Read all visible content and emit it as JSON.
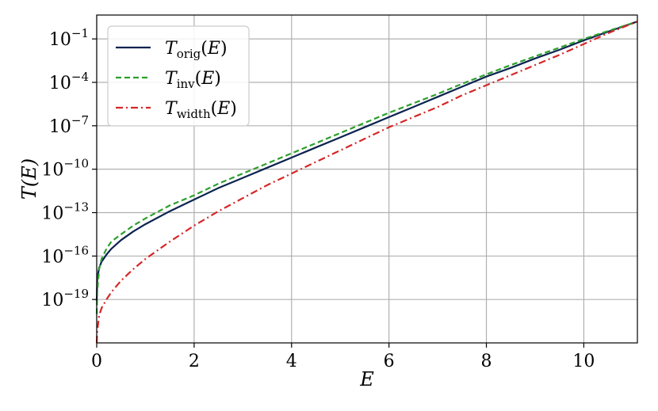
{
  "chart_data": {
    "type": "line",
    "xlabel": "E",
    "ylabel": "T(E)",
    "xlim": [
      0,
      11.1
    ],
    "ylim_log10": [
      -22.0,
      0.65
    ],
    "yscale": "log",
    "grid": true,
    "legend_position": "top-left",
    "x_ticks": [
      0,
      2,
      4,
      6,
      8,
      10
    ],
    "x_tick_labels": [
      "0",
      "2",
      "4",
      "6",
      "8",
      "10"
    ],
    "y_ticks_log10": [
      -1,
      -4,
      -7,
      -10,
      -13,
      -16,
      -19
    ],
    "y_tick_labels": [
      {
        "base": "10",
        "exp": "−1"
      },
      {
        "base": "10",
        "exp": "−4"
      },
      {
        "base": "10",
        "exp": "−7"
      },
      {
        "base": "10",
        "exp": "−10"
      },
      {
        "base": "10",
        "exp": "−13"
      },
      {
        "base": "10",
        "exp": "−16"
      },
      {
        "base": "10",
        "exp": "−19"
      }
    ],
    "series": [
      {
        "name": "T_orig(E)",
        "label_main": "T",
        "label_sub": "orig",
        "label_tail": "(E)",
        "color": "#0b2350",
        "dash": "solid",
        "x": [
          0.01,
          0.05,
          0.1,
          0.2,
          0.3,
          0.5,
          0.75,
          1.0,
          1.5,
          2.0,
          2.5,
          3.0,
          3.5,
          4.0,
          4.5,
          5.0,
          5.5,
          6.0,
          6.5,
          7.0,
          7.5,
          8.0,
          8.5,
          9.0,
          9.5,
          10.0,
          10.5,
          11.1
        ],
        "log10_y": [
          -17.6,
          -16.8,
          -16.4,
          -15.9,
          -15.5,
          -14.9,
          -14.3,
          -13.8,
          -12.9,
          -12.1,
          -11.3,
          -10.6,
          -9.9,
          -9.2,
          -8.5,
          -7.8,
          -7.1,
          -6.4,
          -5.7,
          -5.0,
          -4.3,
          -3.6,
          -3.0,
          -2.35,
          -1.75,
          -1.1,
          -0.5,
          0.2
        ]
      },
      {
        "name": "T_inv(E)",
        "label_main": "T",
        "label_sub": "inv",
        "label_tail": "(E)",
        "color": "#2ca02c",
        "dash": "dashed",
        "x": [
          0.01,
          0.05,
          0.1,
          0.2,
          0.3,
          0.5,
          0.75,
          1.0,
          1.5,
          2.0,
          2.5,
          3.0,
          3.5,
          4.0,
          4.5,
          5.0,
          5.5,
          6.0,
          6.5,
          7.0,
          7.5,
          8.0,
          8.5,
          9.0,
          9.5,
          10.0,
          10.5,
          11.1
        ],
        "log10_y": [
          -18.5,
          -16.9,
          -16.2,
          -15.5,
          -15.0,
          -14.5,
          -13.9,
          -13.4,
          -12.5,
          -11.8,
          -11.0,
          -10.3,
          -9.6,
          -8.9,
          -8.2,
          -7.5,
          -6.8,
          -6.1,
          -5.45,
          -4.8,
          -4.1,
          -3.45,
          -2.8,
          -2.2,
          -1.6,
          -1.0,
          -0.45,
          0.2
        ]
      },
      {
        "name": "T_width(E)",
        "label_main": "T",
        "label_sub": "width",
        "label_tail": "(E)",
        "color": "#d62728",
        "dash": "dashdot",
        "x": [
          0.01,
          0.05,
          0.1,
          0.2,
          0.3,
          0.5,
          0.75,
          1.0,
          1.5,
          2.0,
          2.5,
          3.0,
          3.5,
          4.0,
          4.5,
          5.0,
          5.5,
          6.0,
          6.5,
          7.0,
          7.5,
          8.0,
          8.5,
          9.0,
          9.5,
          10.0,
          10.5,
          11.1
        ],
        "log10_y": [
          -21.2,
          -20.1,
          -19.6,
          -19.0,
          -18.5,
          -17.7,
          -16.9,
          -16.2,
          -15.0,
          -13.9,
          -12.9,
          -12.0,
          -11.1,
          -10.3,
          -9.5,
          -8.7,
          -7.9,
          -7.1,
          -6.4,
          -5.7,
          -4.9,
          -4.2,
          -3.5,
          -2.8,
          -2.1,
          -1.35,
          -0.6,
          0.2
        ]
      }
    ]
  }
}
